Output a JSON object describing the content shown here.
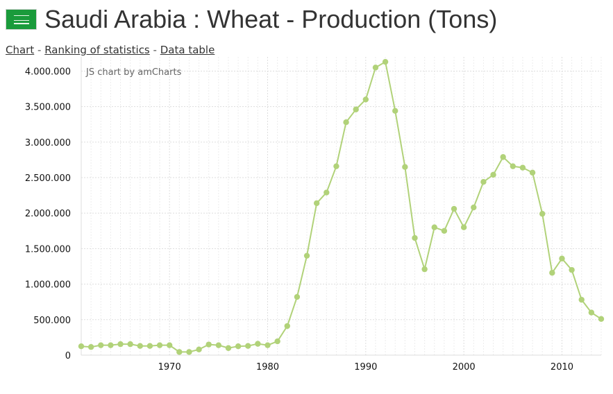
{
  "header": {
    "flag_icon": "saudi-arabia-flag-icon",
    "title": "Saudi Arabia : Wheat - Production (Tons)"
  },
  "nav": {
    "chart_link": "Chart",
    "ranking_link": "Ranking of statistics",
    "table_link": "Data table",
    "separator": "-"
  },
  "credit": "JS chart by amCharts",
  "colors": {
    "line": "#b1d279",
    "grid": "#dddddd",
    "text": "#111111"
  },
  "chart_data": {
    "type": "line",
    "x": [
      1961,
      1962,
      1963,
      1964,
      1965,
      1966,
      1967,
      1968,
      1969,
      1970,
      1971,
      1972,
      1973,
      1974,
      1975,
      1976,
      1977,
      1978,
      1979,
      1980,
      1981,
      1982,
      1983,
      1984,
      1985,
      1986,
      1987,
      1988,
      1989,
      1990,
      1991,
      1992,
      1993,
      1994,
      1995,
      1996,
      1997,
      1998,
      1999,
      2000,
      2001,
      2002,
      2003,
      2004,
      2005,
      2006,
      2007,
      2008,
      2009,
      2010,
      2011,
      2012,
      2013,
      2014
    ],
    "series": [
      {
        "values": [
          125000,
          115000,
          140000,
          140000,
          155000,
          155000,
          130000,
          130000,
          140000,
          140000,
          45000,
          45000,
          80000,
          150000,
          140000,
          100000,
          125000,
          130000,
          160000,
          140000,
          195000,
          410000,
          820000,
          1400000,
          2140000,
          2290000,
          2660000,
          3280000,
          3460000,
          3600000,
          4050000,
          4130000,
          3440000,
          2650000,
          1650000,
          1210000,
          1800000,
          1750000,
          2060000,
          1800000,
          2080000,
          2440000,
          2540000,
          2790000,
          2660000,
          2640000,
          2570000,
          1990000,
          1160000,
          1360000,
          1200000,
          780000,
          600000,
          510000
        ]
      }
    ],
    "xlim": [
      1961,
      2014
    ],
    "ylim": [
      0,
      4200000
    ],
    "x_ticks": [
      1970,
      1980,
      1990,
      2000,
      2010
    ],
    "y_ticks": [
      0,
      500000,
      1000000,
      1500000,
      2000000,
      2500000,
      3000000,
      3500000,
      4000000
    ],
    "x_tick_labels": [
      "1970",
      "1980",
      "1990",
      "2000",
      "2010"
    ],
    "y_tick_labels": [
      "0",
      "500.000",
      "1.000.000",
      "1.500.000",
      "2.000.000",
      "2.500.000",
      "3.000.000",
      "3.500.000",
      "4.000.000"
    ],
    "grid": true,
    "legend": "none"
  }
}
